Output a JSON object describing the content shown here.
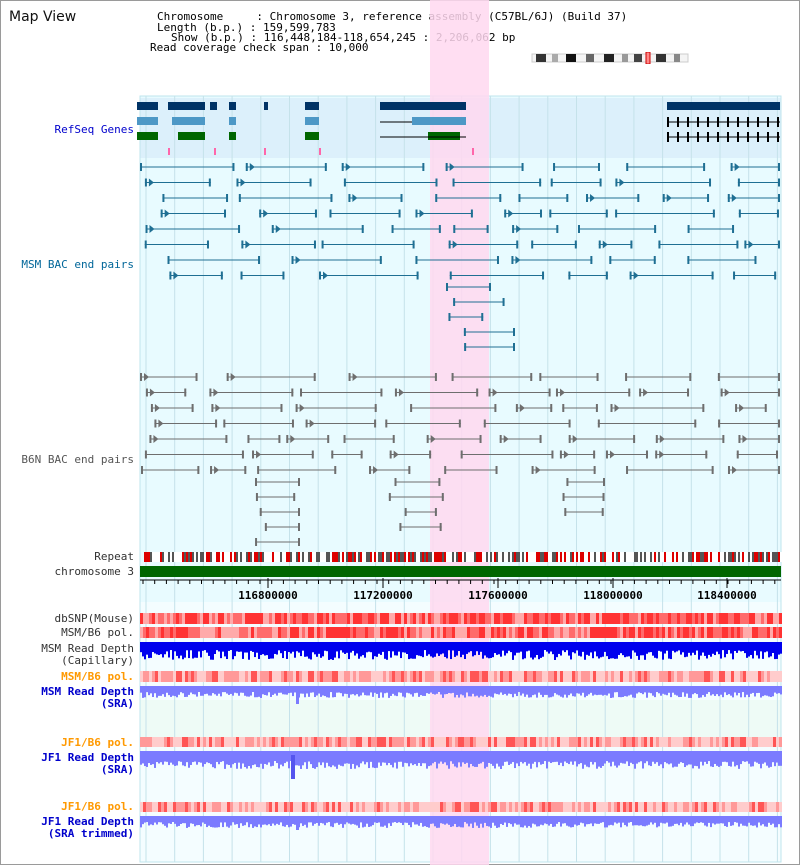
{
  "window_title": "Map View",
  "info": {
    "line1": "Chromosome     : Chromosome 3, reference assembly (C57BL/6J) (Build 37)",
    "line2": "Length (b.p.) : 159,599,783",
    "line3": "Show (b.p.) : 116,448,184-118,654,245 : 2,206,062 bp",
    "line4": "Read coverage check span : 10,000"
  },
  "tracks": {
    "refseq": "RefSeq Genes",
    "msm_bac": "MSM BAC end pairs",
    "b6n_bac": "B6N BAC end pairs",
    "repeat": "Repeat",
    "chromosome": "chromosome 3",
    "dbsnp": "dbSNP(Mouse)",
    "msm_b6_pol": "MSM/B6 pol.",
    "msm_read_depth_cap_1": "MSM Read Depth",
    "msm_read_depth_cap_2": "(Capillary)",
    "msm_b6_pol_sra": "MSM/B6 pol.",
    "msm_read_depth_sra_1": "MSM Read Depth",
    "msm_read_depth_sra_2": "(SRA)",
    "jf1_b6_pol": "JF1/B6 pol.",
    "jf1_read_depth_1": "JF1 Read Depth",
    "jf1_read_depth_2": "(SRA)",
    "jf1_b6_pol_trim": "JF1/B6 pol.",
    "jf1_read_depth_trim_1": "JF1 Read Depth",
    "jf1_read_depth_trim_2": "(SRA trimmed)"
  },
  "axis": {
    "ticks": [
      "116800000",
      "117200000",
      "117600000",
      "118000000",
      "118400000"
    ]
  },
  "colors": {
    "label_blue": "#0000cc",
    "label_teal": "#006699",
    "label_gray": "#555555",
    "label_orange": "#ff9900",
    "highlight": "#ffd8f0",
    "refseq_bg": "#dcf0fb",
    "track_bg": "#e8fbff",
    "green_bg": "#f1fbe9",
    "gene_dark": "#003366",
    "gene_mid": "#4d98c6",
    "gene_green": "#006600",
    "msm_pair": "#1f6f93",
    "b6n_pair": "#6e6e6e",
    "chrom_bar": "#006600",
    "depth_blue": "#0000ee",
    "depth_light": "#7b7bff"
  }
}
